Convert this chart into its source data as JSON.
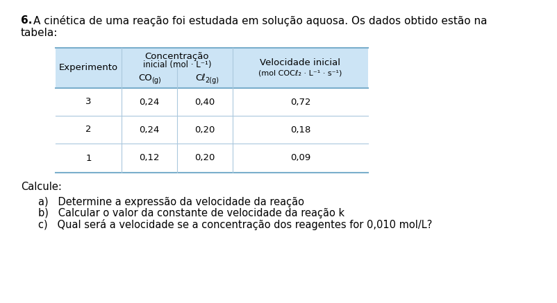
{
  "title_bold": "6.",
  "title_rest": " A cinética de uma reação foi estudada em solução aquosa. Os dados obtido estão na tabela:",
  "experiments": [
    "1",
    "2",
    "3"
  ],
  "co_values": [
    "0,12",
    "0,24",
    "0,24"
  ],
  "cl_values": [
    "0,20",
    "0,20",
    "0,40"
  ],
  "vel_values": [
    "0,09",
    "0,18",
    "0,72"
  ],
  "header_bg": "#cce4f5",
  "row_bg": "#ffffff",
  "border_color": "#7aaecc",
  "sep_color": "#aac8dd",
  "text_color": "#000000",
  "bg_color": "#ffffff",
  "calcule_label": "Calcule:",
  "items": [
    "a)   Determine a expressão da velocidade da reação",
    "b)   Calcular o valor da constante de velocidade da reação k",
    "c)   Qual será a velocidade se a concentração dos reagentes for 0,010 mol/L?"
  ]
}
